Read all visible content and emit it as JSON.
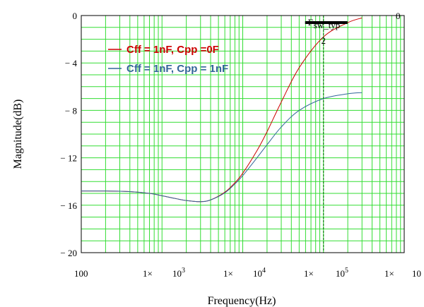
{
  "chart_data": {
    "type": "line",
    "xscale": "log",
    "xlim": [
      100,
      1000000
    ],
    "ylim": [
      -20,
      0
    ],
    "ylabel": "Magnitude(dB)",
    "xlabel": "Frequency(Hz)",
    "ytick_labels": [
      "0",
      "− 4",
      "− 8",
      "− 12",
      "− 16",
      "− 20"
    ],
    "yticks": [
      0,
      -4,
      -8,
      -12,
      -16,
      -20
    ],
    "xtick_labels": [
      {
        "base": "100",
        "exp": "",
        "prefix": ""
      },
      {
        "base": "1",
        "exp": "",
        "prefix": "1×"
      },
      {
        "base": "10",
        "exp": "3",
        "prefix": ""
      },
      {
        "base": "1",
        "exp": "",
        "prefix": "1×"
      },
      {
        "base": "10",
        "exp": "4",
        "prefix": ""
      },
      {
        "base": "1",
        "exp": "",
        "prefix": "1×"
      },
      {
        "base": "10",
        "exp": "5",
        "prefix": ""
      },
      {
        "base": "1",
        "exp": "",
        "prefix": "1×"
      },
      {
        "base": "10",
        "exp": "",
        "prefix": ""
      }
    ],
    "right_top_label": "0",
    "grid": true,
    "series": [
      {
        "name": "Cff = 1nF, Cpp =0F",
        "color": "#cc0000",
        "x": [
          100,
          200,
          400,
          700,
          1000,
          1500,
          2000,
          3000,
          4000,
          6000,
          8000,
          10000,
          15000,
          20000,
          30000,
          50000,
          100000,
          200000,
          300000
        ],
        "y": [
          -14.8,
          -14.8,
          -14.85,
          -15.0,
          -15.2,
          -15.45,
          -15.6,
          -15.7,
          -15.55,
          -14.9,
          -14.1,
          -13.3,
          -11.4,
          -9.8,
          -7.3,
          -4.4,
          -1.8,
          -0.6,
          -0.2
        ]
      },
      {
        "name": "Cff = 1nF, Cpp = 1nF",
        "color": "#336699",
        "x": [
          100,
          200,
          400,
          700,
          1000,
          1500,
          2000,
          3000,
          4000,
          6000,
          8000,
          10000,
          15000,
          20000,
          30000,
          50000,
          100000,
          200000,
          300000
        ],
        "y": [
          -14.8,
          -14.8,
          -14.85,
          -15.0,
          -15.2,
          -15.45,
          -15.6,
          -15.7,
          -15.55,
          -14.95,
          -14.2,
          -13.5,
          -12.0,
          -10.9,
          -9.4,
          -8.0,
          -7.0,
          -6.6,
          -6.5
        ]
      }
    ],
    "marker": {
      "label_main": "F",
      "label_sub": "sw_typ",
      "label_below": "2",
      "x": 100000,
      "color": "#000000",
      "line_color": "#006600"
    }
  },
  "colors": {
    "grid": "#33dd33",
    "axis": "#000000",
    "background": "#ffffff"
  }
}
